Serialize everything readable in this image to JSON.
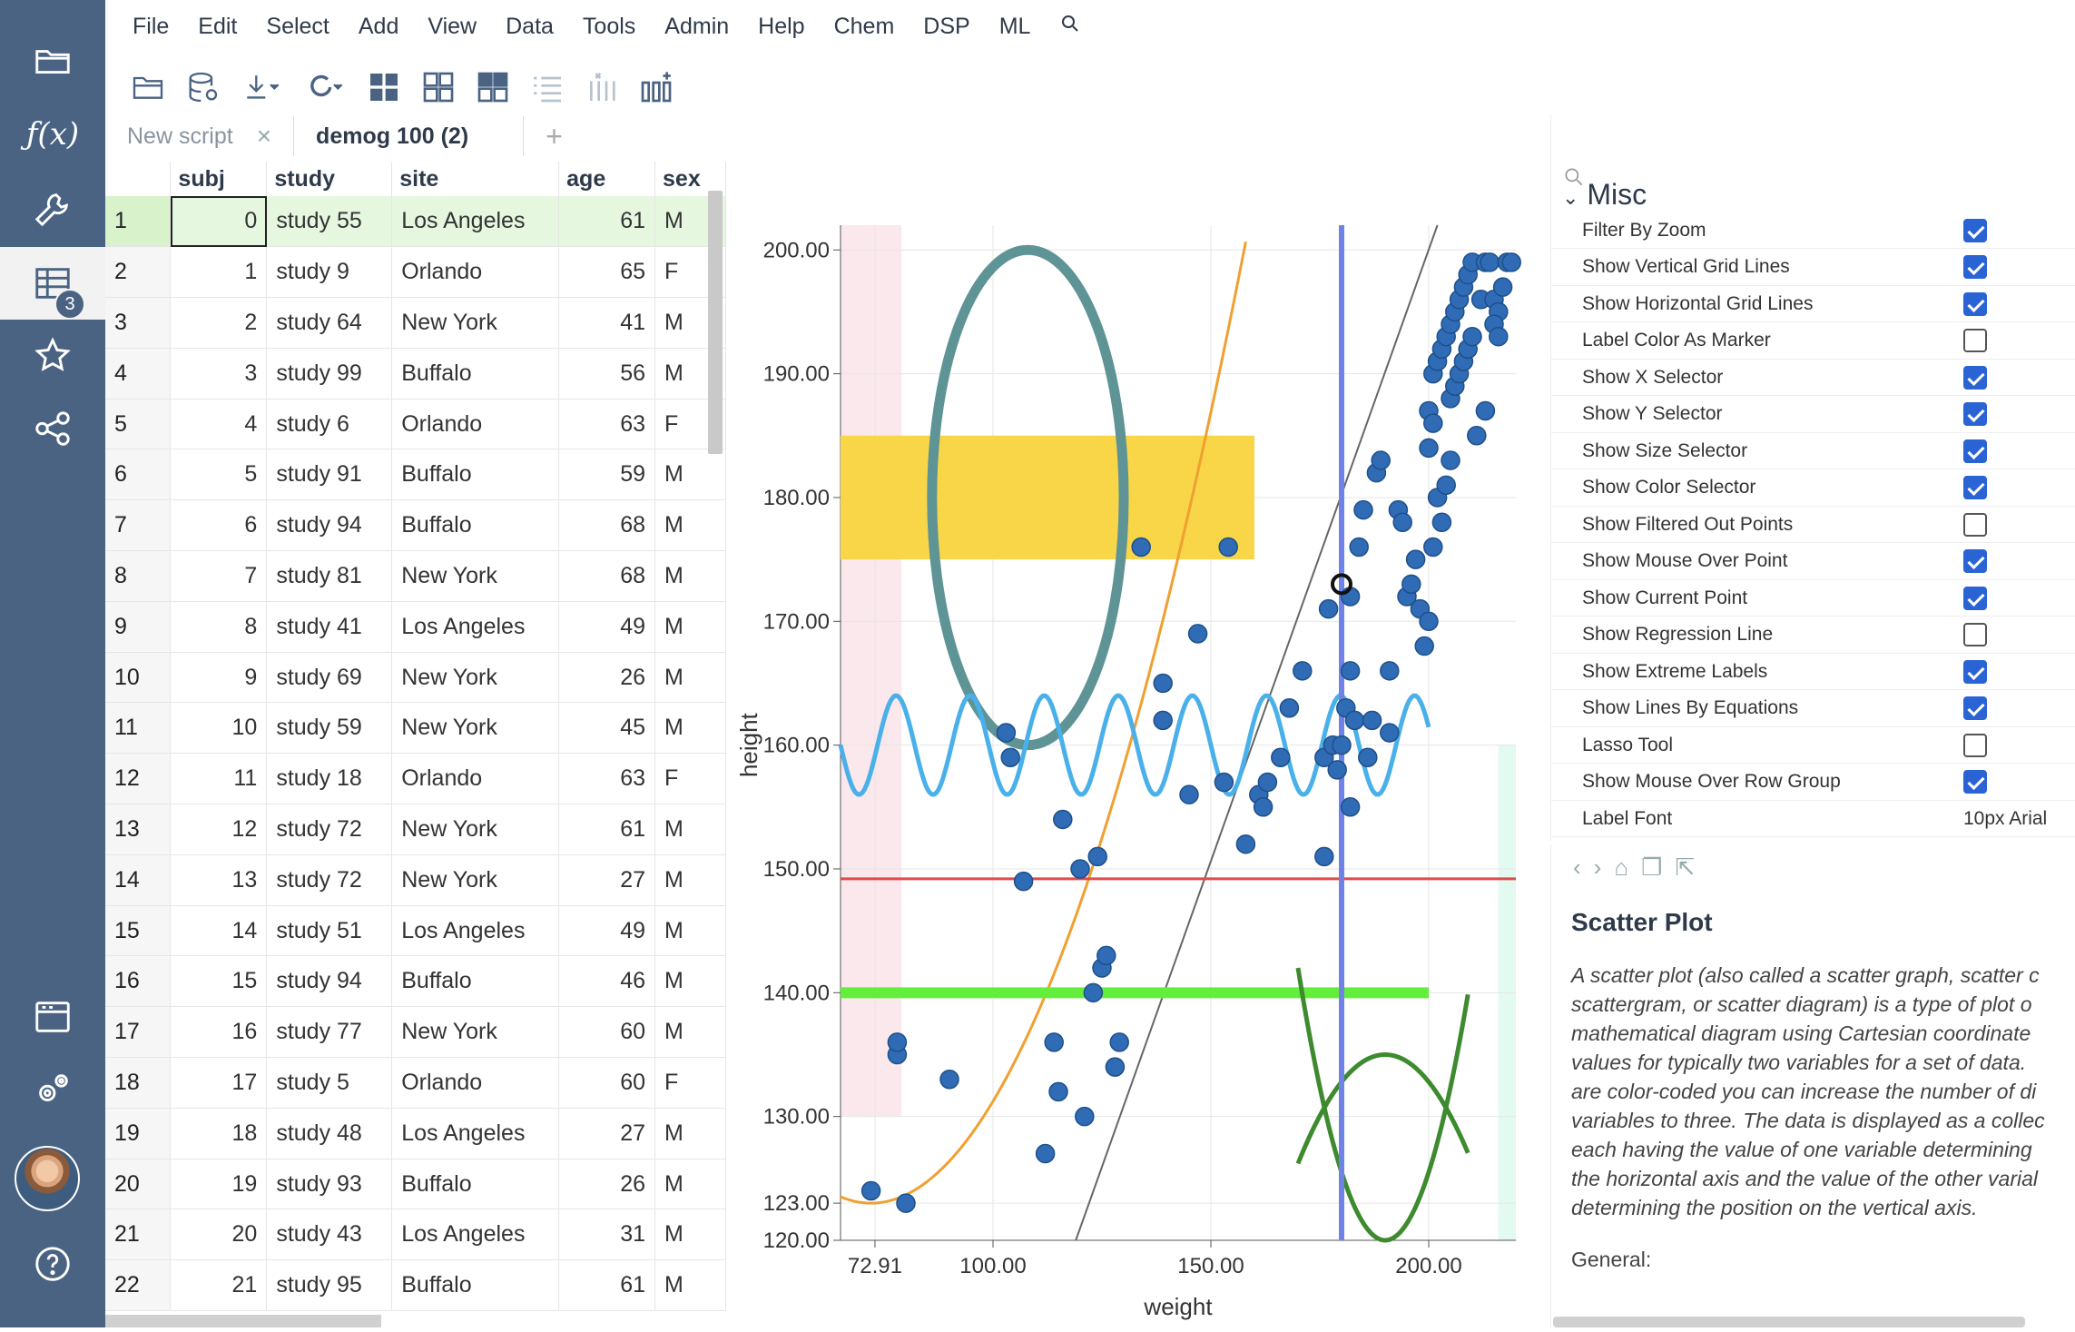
{
  "menu": [
    "File",
    "Edit",
    "Select",
    "Add",
    "View",
    "Data",
    "Tools",
    "Admin",
    "Help",
    "Chem",
    "DSP",
    "ML"
  ],
  "sidebar": {
    "badge": "3"
  },
  "tabs": [
    {
      "label": "New script",
      "active": false
    },
    {
      "label": "demog 100 (2)",
      "active": true
    }
  ],
  "grid": {
    "columns": [
      "subj",
      "study",
      "site",
      "age",
      "sex"
    ],
    "rows": [
      [
        "1",
        "0",
        "study 55",
        "Los Angeles",
        "61",
        "M"
      ],
      [
        "2",
        "1",
        "study 9",
        "Orlando",
        "65",
        "F"
      ],
      [
        "3",
        "2",
        "study 64",
        "New York",
        "41",
        "M"
      ],
      [
        "4",
        "3",
        "study 99",
        "Buffalo",
        "56",
        "M"
      ],
      [
        "5",
        "4",
        "study 6",
        "Orlando",
        "63",
        "F"
      ],
      [
        "6",
        "5",
        "study 91",
        "Buffalo",
        "59",
        "M"
      ],
      [
        "7",
        "6",
        "study 94",
        "Buffalo",
        "68",
        "M"
      ],
      [
        "8",
        "7",
        "study 81",
        "New York",
        "68",
        "M"
      ],
      [
        "9",
        "8",
        "study 41",
        "Los Angeles",
        "49",
        "M"
      ],
      [
        "10",
        "9",
        "study 69",
        "New York",
        "26",
        "M"
      ],
      [
        "11",
        "10",
        "study 59",
        "New York",
        "45",
        "M"
      ],
      [
        "12",
        "11",
        "study 18",
        "Orlando",
        "63",
        "F"
      ],
      [
        "13",
        "12",
        "study 72",
        "New York",
        "61",
        "M"
      ],
      [
        "14",
        "13",
        "study 72",
        "New York",
        "27",
        "M"
      ],
      [
        "15",
        "14",
        "study 51",
        "Los Angeles",
        "49",
        "M"
      ],
      [
        "16",
        "15",
        "study 94",
        "Buffalo",
        "46",
        "M"
      ],
      [
        "17",
        "16",
        "study 77",
        "New York",
        "60",
        "M"
      ],
      [
        "18",
        "17",
        "study 5",
        "Orlando",
        "60",
        "F"
      ],
      [
        "19",
        "18",
        "study 48",
        "Los Angeles",
        "27",
        "M"
      ],
      [
        "20",
        "19",
        "study 93",
        "Buffalo",
        "26",
        "M"
      ],
      [
        "21",
        "20",
        "study 43",
        "Los Angeles",
        "31",
        "M"
      ],
      [
        "22",
        "21",
        "study 95",
        "Buffalo",
        "61",
        "M"
      ]
    ]
  },
  "chart_data": {
    "type": "scatter",
    "xlabel": "weight",
    "ylabel": "height",
    "xlim": [
      65,
      220
    ],
    "ylim": [
      120,
      202
    ],
    "x_ticks": [
      "72.91",
      "100.00",
      "150.00",
      "200.00"
    ],
    "y_ticks": [
      "120.00",
      "123.00",
      "130.00",
      "140.00",
      "150.00",
      "160.00",
      "170.00",
      "180.00",
      "190.00",
      "200.00"
    ],
    "point_color": "#2f6cb5",
    "points": [
      [
        72,
        124
      ],
      [
        80,
        123
      ],
      [
        78,
        135
      ],
      [
        78,
        136
      ],
      [
        90,
        133
      ],
      [
        112,
        127
      ],
      [
        115,
        132
      ],
      [
        114,
        136
      ],
      [
        121,
        130
      ],
      [
        123,
        140
      ],
      [
        125,
        142
      ],
      [
        126,
        143
      ],
      [
        128,
        134
      ],
      [
        129,
        136
      ],
      [
        134,
        176
      ],
      [
        154,
        176
      ],
      [
        139,
        165
      ],
      [
        139,
        162
      ],
      [
        147,
        169
      ],
      [
        145,
        156
      ],
      [
        103,
        161
      ],
      [
        104,
        159
      ],
      [
        107,
        149
      ],
      [
        116,
        154
      ],
      [
        120,
        150
      ],
      [
        124,
        151
      ],
      [
        153,
        157
      ],
      [
        158,
        152
      ],
      [
        161,
        156
      ],
      [
        162,
        155
      ],
      [
        163,
        157
      ],
      [
        166,
        159
      ],
      [
        168,
        163
      ],
      [
        171,
        166
      ],
      [
        176,
        159
      ],
      [
        178,
        160
      ],
      [
        179,
        158
      ],
      [
        180,
        160
      ],
      [
        181,
        163
      ],
      [
        182,
        166
      ],
      [
        183,
        162
      ],
      [
        184,
        176
      ],
      [
        185,
        179
      ],
      [
        176,
        151
      ],
      [
        182,
        155
      ],
      [
        177,
        171
      ],
      [
        182,
        172
      ],
      [
        186,
        159
      ],
      [
        187,
        162
      ],
      [
        188,
        182
      ],
      [
        189,
        183
      ],
      [
        191,
        161
      ],
      [
        191,
        166
      ],
      [
        193,
        179
      ],
      [
        194,
        178
      ],
      [
        195,
        172
      ],
      [
        196,
        173
      ],
      [
        197,
        175
      ],
      [
        198,
        171
      ],
      [
        199,
        168
      ],
      [
        200,
        170
      ],
      [
        201,
        176
      ],
      [
        202,
        180
      ],
      [
        203,
        178
      ],
      [
        204,
        181
      ],
      [
        205,
        183
      ],
      [
        200,
        187
      ],
      [
        201,
        190
      ],
      [
        202,
        191
      ],
      [
        203,
        192
      ],
      [
        204,
        193
      ],
      [
        205,
        194
      ],
      [
        206,
        195
      ],
      [
        207,
        196
      ],
      [
        208,
        197
      ],
      [
        209,
        198
      ],
      [
        210,
        199
      ],
      [
        200,
        184
      ],
      [
        201,
        186
      ],
      [
        205,
        188
      ],
      [
        206,
        189
      ],
      [
        207,
        190
      ],
      [
        208,
        191
      ],
      [
        209,
        192
      ],
      [
        210,
        193
      ],
      [
        212,
        196
      ],
      [
        213,
        199
      ],
      [
        214,
        199
      ],
      [
        215,
        196
      ],
      [
        216,
        195
      ],
      [
        217,
        197
      ],
      [
        218,
        199
      ],
      [
        219,
        199
      ],
      [
        215,
        194
      ],
      [
        216,
        193
      ],
      [
        213,
        187
      ],
      [
        211,
        185
      ]
    ],
    "current_point": [
      180,
      173
    ],
    "x_selector": 180
  },
  "props": {
    "section": "Misc",
    "items": [
      {
        "label": "Filter By Zoom",
        "checked": true
      },
      {
        "label": "Show Vertical Grid Lines",
        "checked": true
      },
      {
        "label": "Show Horizontal Grid Lines",
        "checked": true
      },
      {
        "label": "Label Color As Marker",
        "checked": false
      },
      {
        "label": "Show X Selector",
        "checked": true
      },
      {
        "label": "Show Y Selector",
        "checked": true
      },
      {
        "label": "Show Size Selector",
        "checked": true
      },
      {
        "label": "Show Color Selector",
        "checked": true
      },
      {
        "label": "Show Filtered Out Points",
        "checked": false
      },
      {
        "label": "Show Mouse Over Point",
        "checked": true
      },
      {
        "label": "Show Current Point",
        "checked": true
      },
      {
        "label": "Show Regression Line",
        "checked": false
      },
      {
        "label": "Show Extreme Labels",
        "checked": true
      },
      {
        "label": "Show Lines By Equations",
        "checked": true
      },
      {
        "label": "Lasso Tool",
        "checked": false
      },
      {
        "label": "Show Mouse Over Row Group",
        "checked": true
      }
    ],
    "label_font": {
      "label": "Label Font",
      "value": "10px Arial"
    }
  },
  "help": {
    "title": "Scatter Plot",
    "text": "A scatter plot (also called a scatter graph, scatter c\nscattergram, or scatter diagram) is a type of plot o\nmathematical diagram using Cartesian coordinate\nvalues for typically two variables for a set of data.\nare color-coded you can increase the number of di\nvariables to three. The data is displayed as a collec\neach having the value of one variable determining\nthe horizontal axis and the value of the other varial\ndetermining the position on the vertical axis.",
    "general": "General:"
  }
}
